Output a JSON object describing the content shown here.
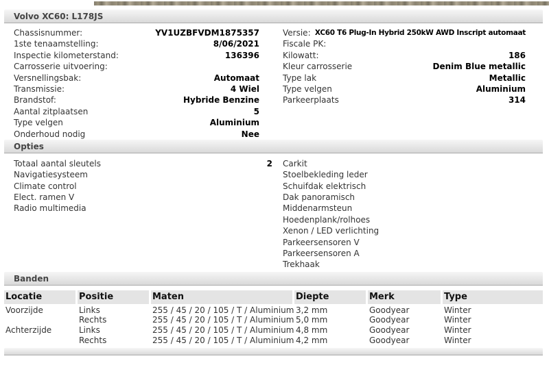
{
  "colors": {
    "section_bar_top": "#f6f6f6",
    "section_bar_bottom": "#d9d9d9",
    "section_bar_border": "#a9a9a9",
    "table_header_bg": "#e4e4e4",
    "photo_strip_olive": "#8c8269",
    "photo_strip_dark": "#5f5845",
    "photo_strip_light": "#a79d85"
  },
  "header": {
    "title": "Volvo XC60: L178JS"
  },
  "vehicle_details": {
    "left": [
      {
        "label": "Chassisnummer:",
        "value": "YV1UZBFVDM1875357"
      },
      {
        "label": "1ste tenaamstelling:",
        "value": "8/06/2021"
      },
      {
        "label": "Inspectie kilometerstand:",
        "value": "136396"
      },
      {
        "label": "Carrosserie uitvoering:",
        "value": ""
      },
      {
        "label": "Versnellingsbak:",
        "value": "Automaat"
      },
      {
        "label": "Transmissie:",
        "value": "4 Wiel"
      },
      {
        "label": "Brandstof:",
        "value": "Hybride Benzine"
      },
      {
        "label": "Aantal zitplaatsen",
        "value": "5"
      },
      {
        "label": "Type velgen",
        "value": "Aluminium"
      },
      {
        "label": "Onderhoud nodig",
        "value": "Nee"
      }
    ],
    "right": [
      {
        "label": "Versie:",
        "value": "XC60 T6 Plug-In Hybrid 250kW AWD Inscript automaat"
      },
      {
        "label": "Fiscale PK:",
        "value": ""
      },
      {
        "label": "Kilowatt:",
        "value": "186"
      },
      {
        "label": "Kleur carrosserie",
        "value": "Denim Blue metallic"
      },
      {
        "label": "Type lak",
        "value": "Metallic"
      },
      {
        "label": "Type velgen",
        "value": "Aluminium"
      },
      {
        "label": "Parkeerplaats",
        "value": "314"
      }
    ]
  },
  "options": {
    "section_title": "Opties",
    "left": [
      {
        "label": "Totaal aantal sleutels",
        "value": "2"
      },
      {
        "label": "Navigatiesysteem",
        "value": ""
      },
      {
        "label": "Climate control",
        "value": ""
      },
      {
        "label": "Elect. ramen V",
        "value": ""
      },
      {
        "label": "Radio multimedia",
        "value": ""
      }
    ],
    "right": [
      "Carkit",
      "Stoelbekleding leder",
      "Schuifdak elektrisch",
      "Dak panoramisch",
      "Middenarmsteun",
      "Hoedenplank/rolhoes",
      "Xenon / LED verlichting",
      "Parkeersensoren V",
      "Parkeersensoren A",
      "Trekhaak"
    ]
  },
  "tyres": {
    "section_title": "Banden",
    "columns": [
      "Locatie",
      "Positie",
      "Maten",
      "Diepte",
      "Merk",
      "Type"
    ],
    "rows": [
      [
        "Voorzijde",
        "Links",
        "255 / 45 / 20 / 105 / T / Aluminium",
        "3,2 mm",
        "Goodyear",
        "Winter"
      ],
      [
        "",
        "Rechts",
        "255 / 45 / 20 / 105 / T / Aluminium",
        "5,0 mm",
        "Goodyear",
        "Winter"
      ],
      [
        "Achterzijde",
        "Links",
        "255 / 45 / 20 / 105 / T / Aluminium",
        "4,8 mm",
        "Goodyear",
        "Winter"
      ],
      [
        "",
        "Rechts",
        "255 / 45 / 20 / 105 / T / Aluminium",
        "4,2 mm",
        "Goodyear",
        "Winter"
      ]
    ]
  }
}
